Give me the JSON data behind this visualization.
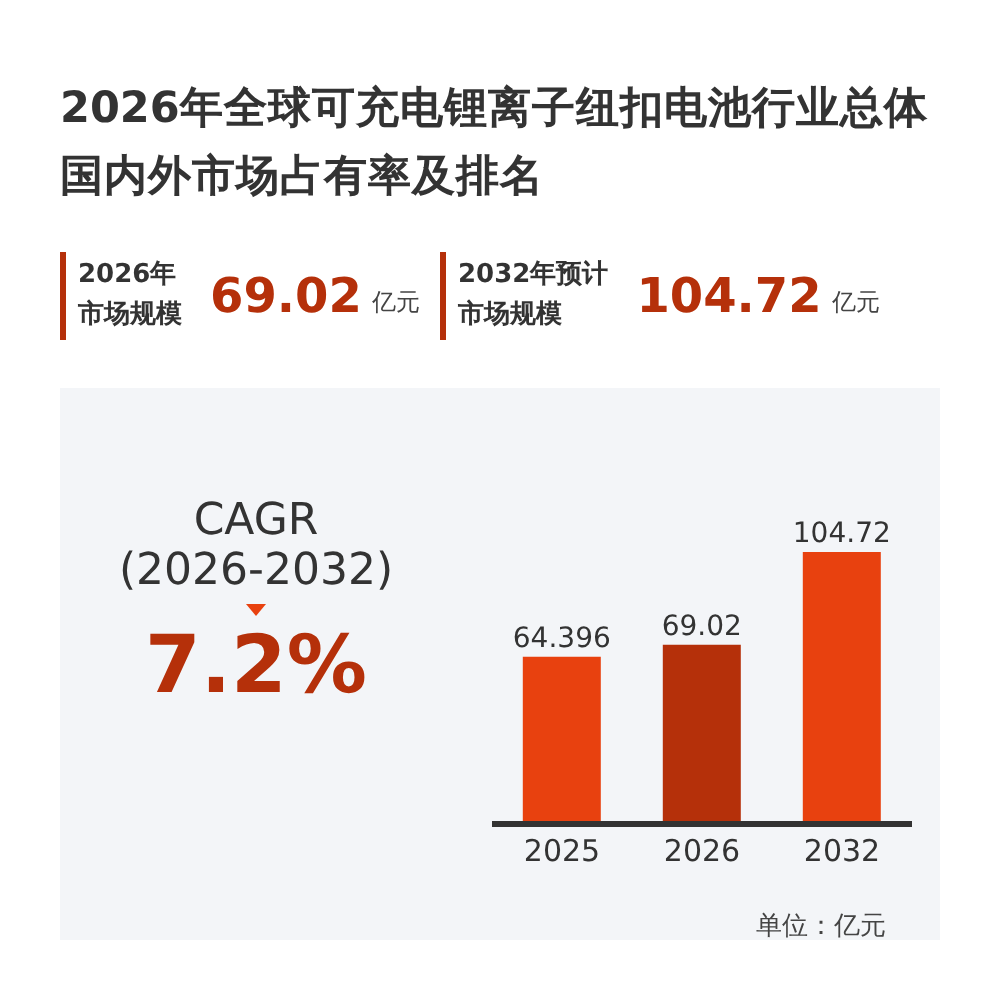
{
  "chart_data": {
    "type": "bar",
    "title": "2026年全球可充电锂离子纽扣电池行业总体国内外市场占有率及排名",
    "categories": [
      "2025",
      "2026",
      "2032"
    ],
    "values": [
      64.396,
      69.02,
      104.72
    ],
    "colors": [
      "#e8410f",
      "#b5300a",
      "#e8410f"
    ],
    "data_labels": true,
    "annotations": [
      "2026年",
      "市场规模",
      "69.02",
      "亿元",
      "2032年预计",
      "市场规模",
      "104.72",
      "亿元",
      "CAGR",
      "(2026-2032)",
      "7.2%",
      "单位：亿元"
    ]
  }
}
